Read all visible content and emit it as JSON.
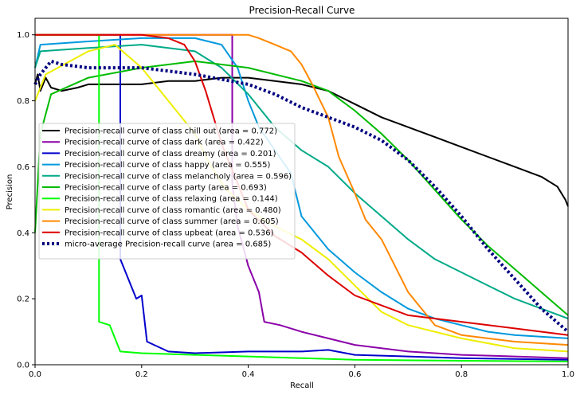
{
  "chart_data": {
    "type": "line",
    "title": "Precision-Recall Curve",
    "xlabel": "Recall",
    "ylabel": "Precision",
    "xlim": [
      0.0,
      1.0
    ],
    "ylim": [
      0.0,
      1.05
    ],
    "xticks": [
      "0.0",
      "0.2",
      "0.4",
      "0.6",
      "0.8",
      "1.0"
    ],
    "yticks": [
      "0.0",
      "0.2",
      "0.4",
      "0.6",
      "0.8",
      "1.0"
    ],
    "grid": false,
    "legend_position": "center-left",
    "series": [
      {
        "name": "Precision-recall curve of class chill out (area = 0.772)",
        "color": "#000000",
        "points": [
          [
            0.0,
            0.85
          ],
          [
            0.005,
            0.88
          ],
          [
            0.01,
            0.83
          ],
          [
            0.02,
            0.87
          ],
          [
            0.03,
            0.84
          ],
          [
            0.05,
            0.83
          ],
          [
            0.08,
            0.84
          ],
          [
            0.1,
            0.85
          ],
          [
            0.15,
            0.85
          ],
          [
            0.2,
            0.85
          ],
          [
            0.25,
            0.86
          ],
          [
            0.3,
            0.86
          ],
          [
            0.35,
            0.87
          ],
          [
            0.4,
            0.87
          ],
          [
            0.45,
            0.86
          ],
          [
            0.5,
            0.85
          ],
          [
            0.55,
            0.83
          ],
          [
            0.6,
            0.79
          ],
          [
            0.65,
            0.75
          ],
          [
            0.7,
            0.72
          ],
          [
            0.75,
            0.69
          ],
          [
            0.8,
            0.66
          ],
          [
            0.85,
            0.63
          ],
          [
            0.9,
            0.6
          ],
          [
            0.95,
            0.57
          ],
          [
            0.98,
            0.54
          ],
          [
            0.995,
            0.5
          ],
          [
            1.0,
            0.48
          ]
        ]
      },
      {
        "name": "Precision-recall curve of class dark (area = 0.422)",
        "color": "#8b00a8",
        "points": [
          [
            0.0,
            1.0
          ],
          [
            0.37,
            1.0
          ],
          [
            0.37,
            0.55
          ],
          [
            0.38,
            0.42
          ],
          [
            0.4,
            0.3
          ],
          [
            0.42,
            0.22
          ],
          [
            0.43,
            0.13
          ],
          [
            0.46,
            0.12
          ],
          [
            0.5,
            0.1
          ],
          [
            0.55,
            0.08
          ],
          [
            0.6,
            0.06
          ],
          [
            0.7,
            0.04
          ],
          [
            0.8,
            0.03
          ],
          [
            0.9,
            0.025
          ],
          [
            1.0,
            0.02
          ]
        ]
      },
      {
        "name": "Precision-recall curve of class dreamy (area = 0.201)",
        "color": "#0000cc",
        "points": [
          [
            0.0,
            1.0
          ],
          [
            0.16,
            1.0
          ],
          [
            0.16,
            0.32
          ],
          [
            0.19,
            0.2
          ],
          [
            0.2,
            0.21
          ],
          [
            0.21,
            0.07
          ],
          [
            0.25,
            0.04
          ],
          [
            0.3,
            0.035
          ],
          [
            0.4,
            0.04
          ],
          [
            0.5,
            0.04
          ],
          [
            0.55,
            0.045
          ],
          [
            0.6,
            0.03
          ],
          [
            0.8,
            0.02
          ],
          [
            1.0,
            0.015
          ]
        ]
      },
      {
        "name": "Precision-recall curve of class happy (area = 0.555)",
        "color": "#0099dd",
        "points": [
          [
            0.0,
            0.9
          ],
          [
            0.01,
            0.97
          ],
          [
            0.1,
            0.98
          ],
          [
            0.2,
            0.99
          ],
          [
            0.3,
            0.99
          ],
          [
            0.35,
            0.97
          ],
          [
            0.38,
            0.9
          ],
          [
            0.4,
            0.8
          ],
          [
            0.42,
            0.72
          ],
          [
            0.45,
            0.65
          ],
          [
            0.48,
            0.58
          ],
          [
            0.5,
            0.45
          ],
          [
            0.55,
            0.35
          ],
          [
            0.6,
            0.28
          ],
          [
            0.65,
            0.22
          ],
          [
            0.7,
            0.17
          ],
          [
            0.75,
            0.14
          ],
          [
            0.8,
            0.12
          ],
          [
            0.85,
            0.1
          ],
          [
            0.9,
            0.09
          ],
          [
            1.0,
            0.08
          ]
        ]
      },
      {
        "name": "Precision-recall curve of class melancholy (area = 0.596)",
        "color": "#00aa88",
        "points": [
          [
            0.0,
            0.9
          ],
          [
            0.01,
            0.95
          ],
          [
            0.1,
            0.96
          ],
          [
            0.2,
            0.97
          ],
          [
            0.3,
            0.95
          ],
          [
            0.35,
            0.9
          ],
          [
            0.4,
            0.82
          ],
          [
            0.45,
            0.72
          ],
          [
            0.5,
            0.65
          ],
          [
            0.55,
            0.6
          ],
          [
            0.6,
            0.52
          ],
          [
            0.65,
            0.45
          ],
          [
            0.7,
            0.38
          ],
          [
            0.75,
            0.32
          ],
          [
            0.8,
            0.28
          ],
          [
            0.85,
            0.24
          ],
          [
            0.9,
            0.2
          ],
          [
            0.95,
            0.17
          ],
          [
            1.0,
            0.14
          ]
        ]
      },
      {
        "name": "Precision-recall curve of class party (area = 0.693)",
        "color": "#00bb00",
        "points": [
          [
            0.0,
            0.4
          ],
          [
            0.01,
            0.7
          ],
          [
            0.03,
            0.82
          ],
          [
            0.1,
            0.87
          ],
          [
            0.2,
            0.9
          ],
          [
            0.3,
            0.92
          ],
          [
            0.4,
            0.9
          ],
          [
            0.5,
            0.86
          ],
          [
            0.55,
            0.83
          ],
          [
            0.6,
            0.77
          ],
          [
            0.65,
            0.7
          ],
          [
            0.7,
            0.62
          ],
          [
            0.75,
            0.53
          ],
          [
            0.8,
            0.44
          ],
          [
            0.85,
            0.36
          ],
          [
            0.9,
            0.29
          ],
          [
            0.95,
            0.22
          ],
          [
            1.0,
            0.15
          ]
        ]
      },
      {
        "name": "Precision-recall curve of class relaxing (area = 0.144)",
        "color": "#00ff00",
        "points": [
          [
            0.0,
            1.0
          ],
          [
            0.12,
            1.0
          ],
          [
            0.12,
            0.13
          ],
          [
            0.14,
            0.12
          ],
          [
            0.16,
            0.04
          ],
          [
            0.2,
            0.035
          ],
          [
            0.3,
            0.03
          ],
          [
            0.4,
            0.025
          ],
          [
            0.5,
            0.02
          ],
          [
            0.6,
            0.015
          ],
          [
            0.8,
            0.012
          ],
          [
            1.0,
            0.01
          ]
        ]
      },
      {
        "name": "Precision-recall curve of class romantic (area = 0.480)",
        "color": "#eeee00",
        "points": [
          [
            0.0,
            0.8
          ],
          [
            0.02,
            0.88
          ],
          [
            0.1,
            0.95
          ],
          [
            0.15,
            0.97
          ],
          [
            0.2,
            0.9
          ],
          [
            0.25,
            0.8
          ],
          [
            0.3,
            0.7
          ],
          [
            0.33,
            0.6
          ],
          [
            0.36,
            0.53
          ],
          [
            0.4,
            0.47
          ],
          [
            0.45,
            0.42
          ],
          [
            0.5,
            0.38
          ],
          [
            0.55,
            0.32
          ],
          [
            0.6,
            0.24
          ],
          [
            0.65,
            0.16
          ],
          [
            0.7,
            0.12
          ],
          [
            0.8,
            0.08
          ],
          [
            0.9,
            0.05
          ],
          [
            1.0,
            0.04
          ]
        ]
      },
      {
        "name": "Precision-recall curve of class summer (area = 0.605)",
        "color": "#ff8800",
        "points": [
          [
            0.0,
            1.0
          ],
          [
            0.4,
            1.0
          ],
          [
            0.42,
            0.99
          ],
          [
            0.45,
            0.97
          ],
          [
            0.48,
            0.95
          ],
          [
            0.5,
            0.91
          ],
          [
            0.52,
            0.85
          ],
          [
            0.55,
            0.75
          ],
          [
            0.57,
            0.63
          ],
          [
            0.6,
            0.52
          ],
          [
            0.62,
            0.44
          ],
          [
            0.65,
            0.38
          ],
          [
            0.7,
            0.22
          ],
          [
            0.75,
            0.12
          ],
          [
            0.8,
            0.09
          ],
          [
            0.9,
            0.07
          ],
          [
            1.0,
            0.06
          ]
        ]
      },
      {
        "name": "Precision-recall curve of class upbeat (area = 0.536)",
        "color": "#dd0000",
        "points": [
          [
            0.0,
            1.0
          ],
          [
            0.2,
            1.0
          ],
          [
            0.25,
            0.99
          ],
          [
            0.28,
            0.97
          ],
          [
            0.3,
            0.92
          ],
          [
            0.32,
            0.83
          ],
          [
            0.35,
            0.67
          ],
          [
            0.38,
            0.55
          ],
          [
            0.4,
            0.47
          ],
          [
            0.45,
            0.39
          ],
          [
            0.5,
            0.34
          ],
          [
            0.55,
            0.27
          ],
          [
            0.6,
            0.21
          ],
          [
            0.7,
            0.15
          ],
          [
            0.8,
            0.13
          ],
          [
            0.9,
            0.11
          ],
          [
            1.0,
            0.09
          ]
        ]
      },
      {
        "name": "micro-average Precision-recall curve (area = 0.685)",
        "color": "#000080",
        "dashed": true,
        "points": [
          [
            0.0,
            0.85
          ],
          [
            0.01,
            0.88
          ],
          [
            0.02,
            0.9
          ],
          [
            0.03,
            0.92
          ],
          [
            0.05,
            0.91
          ],
          [
            0.1,
            0.9
          ],
          [
            0.2,
            0.9
          ],
          [
            0.3,
            0.88
          ],
          [
            0.4,
            0.85
          ],
          [
            0.45,
            0.82
          ],
          [
            0.5,
            0.78
          ],
          [
            0.55,
            0.75
          ],
          [
            0.6,
            0.72
          ],
          [
            0.65,
            0.68
          ],
          [
            0.7,
            0.62
          ],
          [
            0.75,
            0.54
          ],
          [
            0.8,
            0.45
          ],
          [
            0.85,
            0.35
          ],
          [
            0.9,
            0.26
          ],
          [
            0.95,
            0.17
          ],
          [
            1.0,
            0.1
          ]
        ]
      }
    ]
  }
}
